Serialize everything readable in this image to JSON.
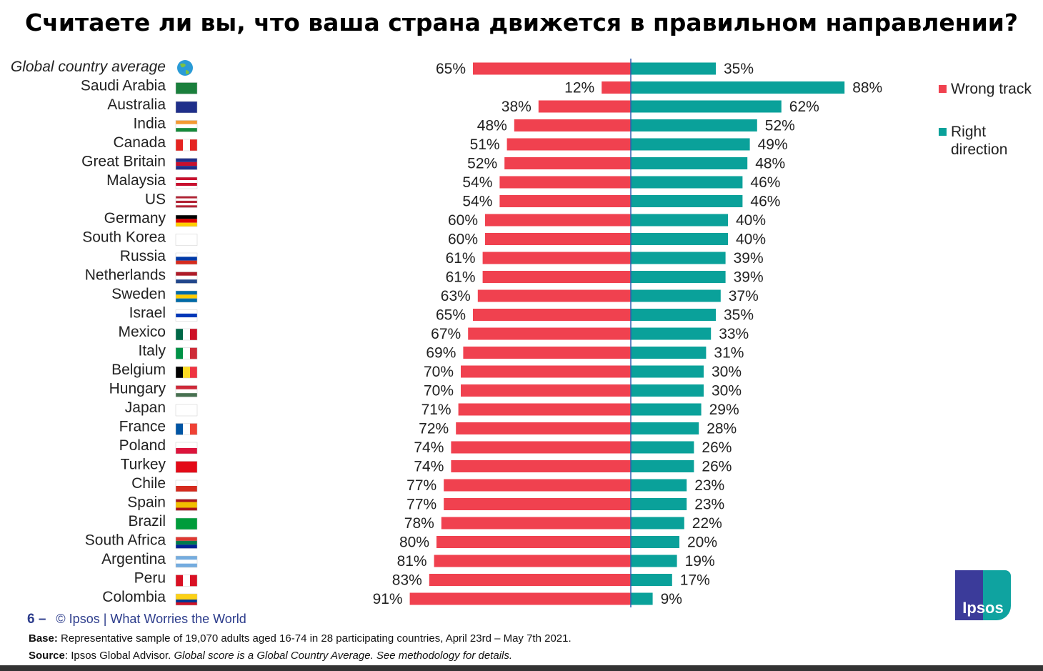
{
  "title": "Считаете ли вы, что ваша страна движется в правильном направлении?",
  "colors": {
    "wrong": "#f0414f",
    "right": "#0aa19a",
    "axis": "#2d5fb0"
  },
  "legend": {
    "wrong": "Wrong track",
    "right_line1": "Right",
    "right_line2": "direction"
  },
  "chart_data": {
    "type": "bar",
    "orientation": "horizontal-diverging",
    "title": "Считаете ли вы, что ваша страна движется в правильном направлении?",
    "categories": [
      "Global country average",
      "Saudi Arabia",
      "Australia",
      "India",
      "Canada",
      "Great Britain",
      "Malaysia",
      "US",
      "Germany",
      "South Korea",
      "Russia",
      "Netherlands",
      "Sweden",
      "Israel",
      "Mexico",
      "Italy",
      "Belgium",
      "Hungary",
      "Japan",
      "France",
      "Poland",
      "Turkey",
      "Chile",
      "Spain",
      "Brazil",
      "South Africa",
      "Argentina",
      "Peru",
      "Colombia"
    ],
    "series": [
      {
        "name": "Wrong track",
        "values": [
          65,
          12,
          38,
          48,
          51,
          52,
          54,
          54,
          60,
          60,
          61,
          61,
          63,
          65,
          67,
          69,
          70,
          70,
          71,
          72,
          74,
          74,
          77,
          77,
          78,
          80,
          81,
          83,
          91
        ]
      },
      {
        "name": "Right direction",
        "values": [
          35,
          88,
          62,
          52,
          49,
          48,
          46,
          46,
          40,
          40,
          39,
          39,
          37,
          35,
          33,
          31,
          30,
          30,
          29,
          28,
          26,
          26,
          23,
          23,
          22,
          20,
          19,
          17,
          9
        ]
      }
    ],
    "unit": "%",
    "legend_position": "top-right"
  },
  "flags": [
    {
      "type": "globe"
    },
    {
      "dir": "h",
      "c": [
        "#1a7f3c"
      ]
    },
    {
      "dir": "h",
      "c": [
        "#1f2f8a"
      ]
    },
    {
      "dir": "h",
      "c": [
        "#f39a33",
        "#ffffff",
        "#148a3a"
      ]
    },
    {
      "dir": "v",
      "c": [
        "#e52421",
        "#ffffff",
        "#e52421"
      ]
    },
    {
      "dir": "h",
      "c": [
        "#1f2f8a",
        "#c8102e",
        "#1f2f8a"
      ]
    },
    {
      "dir": "h",
      "c": [
        "#c8102e",
        "#ffffff",
        "#c8102e",
        "#ffffff"
      ]
    },
    {
      "dir": "h",
      "c": [
        "#b22234",
        "#ffffff",
        "#b22234",
        "#ffffff",
        "#b22234"
      ]
    },
    {
      "dir": "h",
      "c": [
        "#000000",
        "#dd0000",
        "#ffce00"
      ]
    },
    {
      "dir": "h",
      "c": [
        "#ffffff"
      ]
    },
    {
      "dir": "h",
      "c": [
        "#ffffff",
        "#0039a6",
        "#d52b1e"
      ]
    },
    {
      "dir": "h",
      "c": [
        "#ae1c28",
        "#ffffff",
        "#21468b"
      ]
    },
    {
      "dir": "h",
      "c": [
        "#006aa7",
        "#fecc00",
        "#006aa7"
      ]
    },
    {
      "dir": "h",
      "c": [
        "#ffffff",
        "#0038b8",
        "#ffffff"
      ]
    },
    {
      "dir": "v",
      "c": [
        "#006847",
        "#ffffff",
        "#ce1126"
      ]
    },
    {
      "dir": "v",
      "c": [
        "#009246",
        "#ffffff",
        "#ce2b37"
      ]
    },
    {
      "dir": "v",
      "c": [
        "#000000",
        "#fdda24",
        "#ef3340"
      ]
    },
    {
      "dir": "h",
      "c": [
        "#ce2939",
        "#ffffff",
        "#477050"
      ]
    },
    {
      "dir": "h",
      "c": [
        "#ffffff"
      ]
    },
    {
      "dir": "v",
      "c": [
        "#0055a4",
        "#ffffff",
        "#ef4135"
      ]
    },
    {
      "dir": "h",
      "c": [
        "#ffffff",
        "#dc143c"
      ]
    },
    {
      "dir": "h",
      "c": [
        "#e30a17"
      ]
    },
    {
      "dir": "h",
      "c": [
        "#ffffff",
        "#d52b1e"
      ]
    },
    {
      "dir": "h",
      "c": [
        "#aa151b",
        "#f1bf00",
        "#f1bf00",
        "#aa151b"
      ]
    },
    {
      "dir": "h",
      "c": [
        "#009c3b"
      ]
    },
    {
      "dir": "h",
      "c": [
        "#de3831",
        "#007a4d",
        "#002395"
      ]
    },
    {
      "dir": "h",
      "c": [
        "#74acdf",
        "#ffffff",
        "#74acdf"
      ]
    },
    {
      "dir": "v",
      "c": [
        "#d91023",
        "#ffffff",
        "#d91023"
      ]
    },
    {
      "dir": "h",
      "c": [
        "#fcd116",
        "#fcd116",
        "#003893",
        "#ce1126"
      ]
    }
  ],
  "footer": {
    "page": "6 –",
    "credit": "© Ipsos | What Worries the World",
    "base_label": "Base:",
    "base_text": " Representative sample of 19,070  adults aged 16-74 in 28 participating countries, April 23rd – May 7th 2021.",
    "source_label": "Source",
    "source_text": ": Ipsos Global Advisor. ",
    "source_italic": "Global score is a Global Country Average. See methodology for details.",
    "logo": "Ipsos"
  }
}
